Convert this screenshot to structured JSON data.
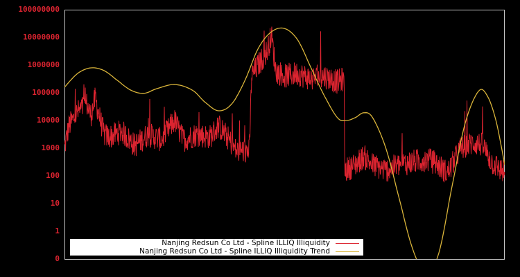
{
  "chart_data": {
    "type": "line",
    "title": "",
    "xlabel": "",
    "ylabel": "",
    "yscale": "log",
    "y_tick_labels": [
      "100000000",
      "10000000",
      "1000000",
      "100000",
      "10000",
      "1000",
      "100",
      "10",
      "1",
      "0"
    ],
    "x_tick_labels": [],
    "grid": false,
    "legend_position": "lower left",
    "background": "#000000",
    "axis_color": "#c8c8c8",
    "tick_label_color": "#dc2430",
    "series": [
      {
        "name": "Nanjing Redsun Co Ltd - Spline ILLIQ Illiquidity",
        "color": "#dc2430",
        "note": "noisy daily series; approximate envelope (x = fraction of axis width, y = log10 level)",
        "points": [
          [
            0.0,
            3.0
          ],
          [
            0.01,
            3.8
          ],
          [
            0.03,
            4.3
          ],
          [
            0.05,
            4.6
          ],
          [
            0.06,
            4.2
          ],
          [
            0.07,
            4.8
          ],
          [
            0.08,
            4.1
          ],
          [
            0.09,
            3.5
          ],
          [
            0.1,
            3.4
          ],
          [
            0.13,
            3.6
          ],
          [
            0.16,
            3.1
          ],
          [
            0.19,
            3.5
          ],
          [
            0.22,
            3.3
          ],
          [
            0.25,
            4.0
          ],
          [
            0.27,
            3.3
          ],
          [
            0.3,
            3.5
          ],
          [
            0.33,
            3.4
          ],
          [
            0.35,
            3.8
          ],
          [
            0.37,
            3.4
          ],
          [
            0.39,
            2.9
          ],
          [
            0.42,
            2.9
          ],
          [
            0.425,
            5.6
          ],
          [
            0.44,
            6.0
          ],
          [
            0.46,
            6.5
          ],
          [
            0.47,
            7.1
          ],
          [
            0.48,
            5.8
          ],
          [
            0.5,
            5.6
          ],
          [
            0.53,
            5.7
          ],
          [
            0.56,
            5.5
          ],
          [
            0.59,
            5.6
          ],
          [
            0.62,
            5.4
          ],
          [
            0.635,
            5.5
          ],
          [
            0.637,
            2.2
          ],
          [
            0.66,
            2.4
          ],
          [
            0.68,
            2.7
          ],
          [
            0.7,
            2.4
          ],
          [
            0.73,
            2.2
          ],
          [
            0.76,
            2.4
          ],
          [
            0.79,
            2.5
          ],
          [
            0.82,
            2.6
          ],
          [
            0.84,
            2.5
          ],
          [
            0.87,
            2.1
          ],
          [
            0.9,
            3.0
          ],
          [
            0.93,
            3.2
          ],
          [
            0.95,
            3.1
          ],
          [
            0.97,
            2.5
          ],
          [
            1.0,
            2.1
          ]
        ]
      },
      {
        "name": "Nanjing Redsun Co Ltd - Spline ILLIQ Illiquidity Trend",
        "color": "#d9b43a",
        "points": [
          [
            0.0,
            5.2
          ],
          [
            0.03,
            5.7
          ],
          [
            0.06,
            5.9
          ],
          [
            0.09,
            5.8
          ],
          [
            0.12,
            5.45
          ],
          [
            0.15,
            5.1
          ],
          [
            0.18,
            4.98
          ],
          [
            0.21,
            5.15
          ],
          [
            0.25,
            5.3
          ],
          [
            0.29,
            5.1
          ],
          [
            0.32,
            4.65
          ],
          [
            0.35,
            4.35
          ],
          [
            0.38,
            4.6
          ],
          [
            0.41,
            5.45
          ],
          [
            0.44,
            6.6
          ],
          [
            0.47,
            7.2
          ],
          [
            0.5,
            7.32
          ],
          [
            0.53,
            6.9
          ],
          [
            0.56,
            5.9
          ],
          [
            0.59,
            4.9
          ],
          [
            0.62,
            4.1
          ],
          [
            0.64,
            4.0
          ],
          [
            0.66,
            4.1
          ],
          [
            0.68,
            4.28
          ],
          [
            0.7,
            4.1
          ],
          [
            0.73,
            3.0
          ],
          [
            0.76,
            1.2
          ],
          [
            0.79,
            -0.6
          ],
          [
            0.82,
            -1.5
          ],
          [
            0.85,
            -0.8
          ],
          [
            0.88,
            1.6
          ],
          [
            0.91,
            3.9
          ],
          [
            0.94,
            5.05
          ],
          [
            0.96,
            4.9
          ],
          [
            0.98,
            4.0
          ],
          [
            1.0,
            2.4
          ]
        ]
      }
    ]
  },
  "legend": {
    "items": [
      {
        "label": "Nanjing Redsun Co Ltd - Spline ILLIQ Illiquidity",
        "color": "#dc2430"
      },
      {
        "label": "Nanjing Redsun Co Ltd - Spline ILLIQ Illiquidity Trend",
        "color": "#d9b43a"
      }
    ]
  }
}
